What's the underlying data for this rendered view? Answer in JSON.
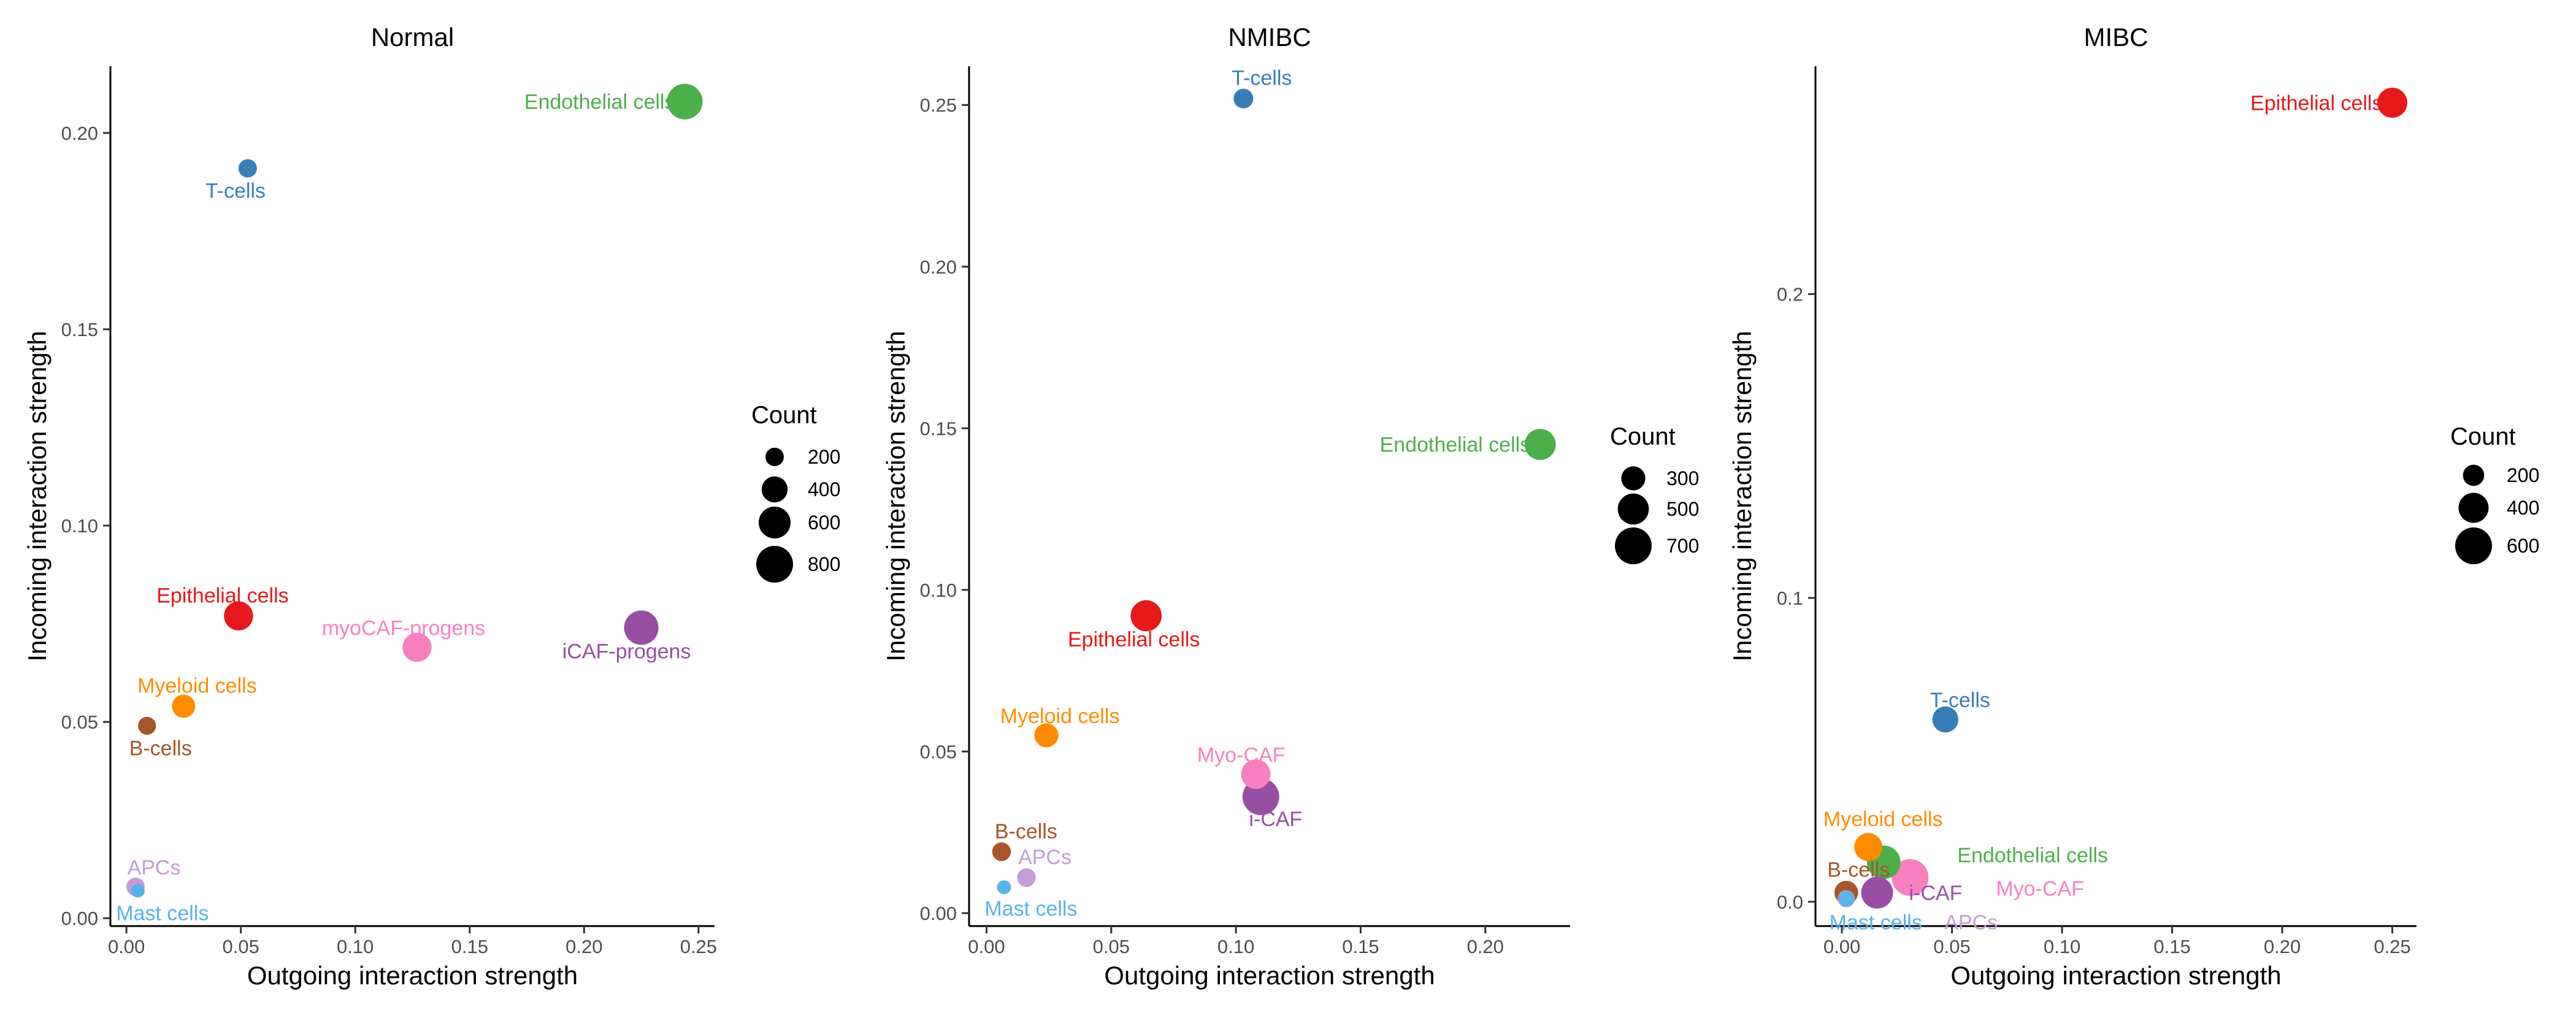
{
  "chart_data": [
    {
      "type": "scatter",
      "title": "Normal",
      "xlabel": "Outgoing interaction strength",
      "ylabel": "Incoming interaction strength",
      "xlim": [
        -0.007,
        0.257
      ],
      "ylim": [
        -0.002,
        0.217
      ],
      "xticks": [
        0.0,
        0.05,
        0.1,
        0.15,
        0.2,
        0.25
      ],
      "xtick_labels": [
        "0.00",
        "0.05",
        "0.10",
        "0.15",
        "0.20",
        "0.25"
      ],
      "yticks": [
        0.0,
        0.05,
        0.1,
        0.15,
        0.2
      ],
      "ytick_labels": [
        "0.00",
        "0.05",
        "0.10",
        "0.15",
        "0.20"
      ],
      "grid": false,
      "legend": {
        "title": "Count",
        "position": "right",
        "sizes": [
          200,
          400,
          600,
          800
        ],
        "labels": [
          "200",
          "400",
          "600",
          "800"
        ]
      },
      "points": [
        {
          "label": "Endothelial cells",
          "x": 0.244,
          "y": 0.208,
          "count": 750,
          "color": "#4daf4a",
          "anchor": "end",
          "dx": -16,
          "dy": 12
        },
        {
          "label": "T-cells",
          "x": 0.053,
          "y": 0.191,
          "count": 200,
          "color": "#377eb8",
          "anchor": "middle",
          "dx": -20,
          "dy": 48
        },
        {
          "label": "Epithelial cells",
          "x": 0.049,
          "y": 0.077,
          "count": 500,
          "color": "#e41a1c",
          "anchor": "middle",
          "dx": -26,
          "dy": -22
        },
        {
          "label": "myoCAF-progens",
          "x": 0.127,
          "y": 0.069,
          "count": 500,
          "color": "#f781bf",
          "anchor": "middle",
          "dx": -22,
          "dy": -20
        },
        {
          "label": "iCAF-progens",
          "x": 0.225,
          "y": 0.074,
          "count": 700,
          "color": "#984ea3",
          "anchor": "middle",
          "dx": -24,
          "dy": 50
        },
        {
          "label": "Myeloid cells",
          "x": 0.025,
          "y": 0.054,
          "count": 320,
          "color": "#ff8c00",
          "anchor": "middle",
          "dx": 22,
          "dy": -22
        },
        {
          "label": "B-cells",
          "x": 0.009,
          "y": 0.049,
          "count": 190,
          "color": "#a65628",
          "anchor": "middle",
          "dx": 22,
          "dy": 48
        },
        {
          "label": "APCs",
          "x": 0.004,
          "y": 0.008,
          "count": 200,
          "color": "#c49dd6",
          "anchor": "middle",
          "dx": 30,
          "dy": -20
        },
        {
          "label": "Mast cells",
          "x": 0.005,
          "y": 0.007,
          "count": 110,
          "color": "#56b4e9",
          "anchor": "middle",
          "dx": 40,
          "dy": 48
        }
      ]
    },
    {
      "type": "scatter",
      "title": "NMIBC",
      "xlabel": "Outgoing interaction strength",
      "ylabel": "Incoming interaction strength",
      "xlim": [
        -0.007,
        0.234
      ],
      "ylim": [
        -0.004,
        0.262
      ],
      "xticks": [
        0.0,
        0.05,
        0.1,
        0.15,
        0.2
      ],
      "xtick_labels": [
        "0.00",
        "0.05",
        "0.10",
        "0.15",
        "0.20"
      ],
      "yticks": [
        0.0,
        0.05,
        0.1,
        0.15,
        0.2,
        0.25
      ],
      "ytick_labels": [
        "0.00",
        "0.05",
        "0.10",
        "0.15",
        "0.20",
        "0.25"
      ],
      "grid": false,
      "legend": {
        "title": "Count",
        "position": "right",
        "sizes": [
          300,
          500,
          700
        ],
        "labels": [
          "300",
          "500",
          "700"
        ]
      },
      "points": [
        {
          "label": "T-cells",
          "x": 0.103,
          "y": 0.252,
          "count": 200,
          "color": "#377eb8",
          "anchor": "middle",
          "dx": 30,
          "dy": -22
        },
        {
          "label": "Endothelial cells",
          "x": 0.222,
          "y": 0.145,
          "count": 500,
          "color": "#4daf4a",
          "anchor": "end",
          "dx": -16,
          "dy": 12
        },
        {
          "label": "Epithelial cells",
          "x": 0.064,
          "y": 0.092,
          "count": 500,
          "color": "#e41a1c",
          "anchor": "middle",
          "dx": -20,
          "dy": 50
        },
        {
          "label": "Myeloid cells",
          "x": 0.024,
          "y": 0.055,
          "count": 300,
          "color": "#ff8c00",
          "anchor": "middle",
          "dx": 22,
          "dy": -20
        },
        {
          "label": "Myo-CAF",
          "x": 0.108,
          "y": 0.043,
          "count": 450,
          "color": "#f781bf",
          "anchor": "middle",
          "dx": -24,
          "dy": -20
        },
        {
          "label": "i-CAF",
          "x": 0.11,
          "y": 0.036,
          "count": 700,
          "color": "#984ea3",
          "anchor": "middle",
          "dx": 24,
          "dy": 48
        },
        {
          "label": "B-cells",
          "x": 0.006,
          "y": 0.019,
          "count": 180,
          "color": "#a65628",
          "anchor": "middle",
          "dx": 40,
          "dy": -22
        },
        {
          "label": "APCs",
          "x": 0.016,
          "y": 0.011,
          "count": 180,
          "color": "#c49dd6",
          "anchor": "middle",
          "dx": 30,
          "dy": -22
        },
        {
          "label": "Mast cells",
          "x": 0.007,
          "y": 0.008,
          "count": 100,
          "color": "#56b4e9",
          "anchor": "middle",
          "dx": 44,
          "dy": 46
        }
      ]
    },
    {
      "type": "scatter",
      "title": "MIBC",
      "xlabel": "Outgoing interaction strength",
      "ylabel": "Incoming interaction strength",
      "xlim": [
        -0.012,
        0.261
      ],
      "ylim": [
        -0.008,
        0.275
      ],
      "xticks": [
        0.0,
        0.05,
        0.1,
        0.15,
        0.2,
        0.25
      ],
      "xtick_labels": [
        "0.00",
        "0.05",
        "0.10",
        "0.15",
        "0.20",
        "0.25"
      ],
      "yticks": [
        0.0,
        0.1,
        0.2
      ],
      "ytick_labels": [
        "0.0",
        "0.1",
        "0.2"
      ],
      "grid": false,
      "legend": {
        "title": "Count",
        "position": "right",
        "sizes": [
          200,
          400,
          600
        ],
        "labels": [
          "200",
          "400",
          "600"
        ]
      },
      "points": [
        {
          "label": "Epithelial cells",
          "x": 0.25,
          "y": 0.263,
          "count": 400,
          "color": "#e41a1c",
          "anchor": "end",
          "dx": -16,
          "dy": 12
        },
        {
          "label": "T-cells",
          "x": 0.047,
          "y": 0.06,
          "count": 300,
          "color": "#377eb8",
          "anchor": "middle",
          "dx": 24,
          "dy": -20
        },
        {
          "label": "Myeloid cells",
          "x": 0.012,
          "y": 0.018,
          "count": 350,
          "color": "#ff8c00",
          "anchor": "middle",
          "dx": 24,
          "dy": -34
        },
        {
          "label": "Endothelial cells",
          "x": 0.019,
          "y": 0.013,
          "count": 500,
          "color": "#4daf4a",
          "anchor": "start",
          "dx": 120,
          "dy": 0
        },
        {
          "label": "B-cells",
          "x": 0.002,
          "y": 0.003,
          "count": 250,
          "color": "#a65628",
          "anchor": "middle",
          "dx": 20,
          "dy": -26
        },
        {
          "label": "i-CAF",
          "x": 0.016,
          "y": 0.003,
          "count": 450,
          "color": "#984ea3",
          "anchor": "start",
          "dx": 52,
          "dy": 12
        },
        {
          "label": "Myo-CAF",
          "x": 0.031,
          "y": 0.008,
          "count": 600,
          "color": "#f781bf",
          "anchor": "start",
          "dx": 140,
          "dy": 30
        },
        {
          "label": "APCs",
          "x": 0.002,
          "y": 0.001,
          "count": 130,
          "color": "#c49dd6",
          "anchor": "start",
          "dx": 160,
          "dy": 50
        },
        {
          "label": "Mast cells",
          "x": 0.002,
          "y": 0.001,
          "count": 110,
          "color": "#56b4e9",
          "anchor": "middle",
          "dx": 48,
          "dy": 50
        }
      ]
    }
  ]
}
